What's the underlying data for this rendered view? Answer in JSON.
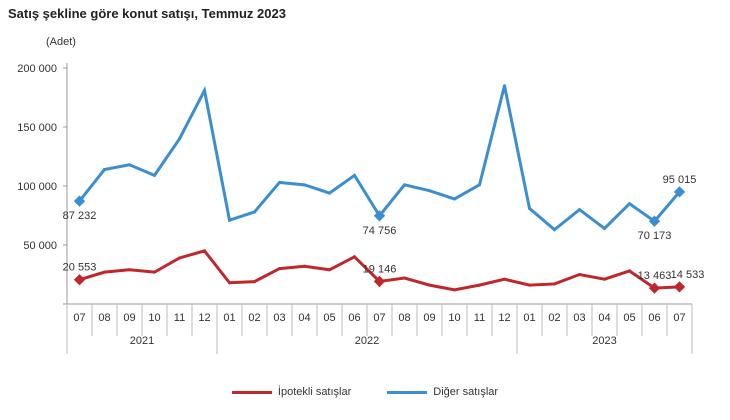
{
  "chart_data": {
    "type": "line",
    "title": "Satış şekline göre konut satışı, Temmuz 2023",
    "ylabel": "(Adet)",
    "ylim": [
      0,
      200000
    ],
    "yticks": [
      0,
      50000,
      100000,
      150000,
      200000
    ],
    "ytick_labels": [
      "",
      "50 000",
      "100 000",
      "150 000",
      "200 000"
    ],
    "x": [
      "07",
      "08",
      "09",
      "10",
      "11",
      "12",
      "01",
      "02",
      "03",
      "04",
      "05",
      "06",
      "07",
      "08",
      "09",
      "10",
      "11",
      "12",
      "01",
      "02",
      "03",
      "04",
      "05",
      "06",
      "07"
    ],
    "year_groups": [
      {
        "label": "2021",
        "count": 6
      },
      {
        "label": "2022",
        "count": 12
      },
      {
        "label": "2023",
        "count": 7
      }
    ],
    "legend_position": "bottom",
    "grid": false,
    "series": [
      {
        "name": "İpotekli satışlar",
        "color": "#c0272d",
        "values": [
          20553,
          27000,
          29000,
          27000,
          39000,
          45000,
          18000,
          19000,
          30000,
          32000,
          29000,
          40000,
          19146,
          22000,
          16000,
          12000,
          16000,
          21000,
          16000,
          17000,
          25000,
          21000,
          28000,
          13463,
          14533
        ],
        "labels": {
          "0": "20 553",
          "12": "19 146",
          "23": "13 463",
          "24": "14 533"
        }
      },
      {
        "name": "Diğer satışlar",
        "color": "#3b8ed0",
        "values": [
          87232,
          114000,
          118000,
          109000,
          140000,
          181000,
          71000,
          78000,
          103000,
          101000,
          94000,
          109000,
          74756,
          101000,
          96000,
          89000,
          101000,
          185000,
          81000,
          63000,
          80000,
          64000,
          85000,
          70173,
          95015
        ],
        "labels": {
          "0": "87 232",
          "12": "74 756",
          "23": "70 173",
          "24": "95 015"
        }
      }
    ]
  }
}
